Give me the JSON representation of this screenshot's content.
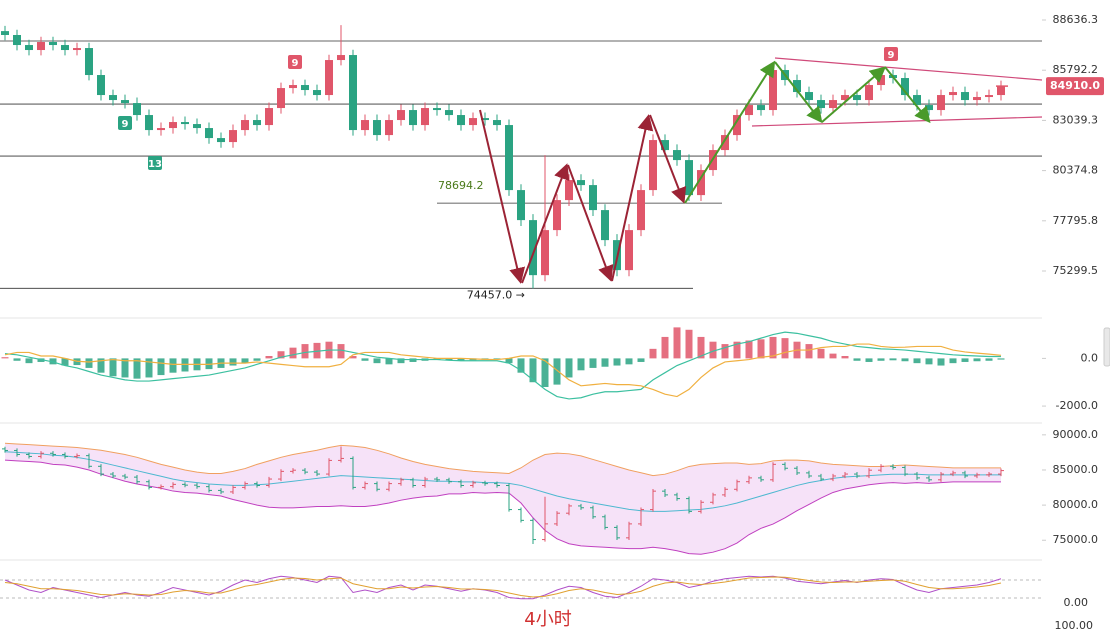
{
  "chart_data": [
    {
      "type": "candlestick",
      "log_scale": true,
      "grid": false,
      "ylim": [
        73894,
        89796
      ],
      "yticks": [
        88636.3,
        85792.2,
        83039.3,
        80374.8,
        77795.8,
        75299.5
      ],
      "up_color": "#e0566a",
      "down_color": "#2aa382",
      "open": [
        88000,
        87777,
        87207,
        86924,
        87378,
        87207,
        86924,
        87037,
        85524,
        84419,
        84145,
        83981,
        83329,
        82520,
        82628,
        82951,
        82843,
        82628,
        82092,
        81879,
        82520,
        83059,
        82789,
        83709,
        84803,
        84970,
        84694,
        84419,
        86361,
        86642,
        82520,
        83059,
        82252,
        83059,
        83600,
        82789,
        83709,
        83600,
        83329,
        82789,
        83166,
        83059,
        82789,
        79364,
        77831,
        75097,
        77327,
        78850,
        79882,
        79622,
        78339,
        76826,
        75342,
        77327,
        79364,
        81986,
        81455,
        80926,
        79106,
        80403,
        81455,
        82252,
        83329,
        83872,
        83600,
        85802,
        85246,
        84584,
        84145,
        83709,
        84145,
        84419,
        84145,
        84970,
        85524,
        85357,
        84419,
        83872,
        83600,
        84419,
        84584,
        84145,
        84310,
        84419
      ],
      "high": [
        88300,
        88077,
        87507,
        87678,
        87678,
        87507,
        87337,
        87337,
        85824,
        84719,
        84445,
        84281,
        83629,
        82928,
        83251,
        83251,
        83143,
        82928,
        82392,
        82820,
        83359,
        83359,
        84009,
        85103,
        85270,
        85270,
        84994,
        86661,
        88342,
        86942,
        83359,
        83359,
        83359,
        83900,
        83900,
        84009,
        84009,
        83900,
        83629,
        83466,
        83466,
        83359,
        83089,
        79664,
        78131,
        81188,
        79150,
        80182,
        80182,
        79922,
        78639,
        77126,
        77627,
        79664,
        82286,
        82286,
        81755,
        81226,
        80703,
        81755,
        82552,
        83629,
        84172,
        84172,
        86102,
        86102,
        85546,
        84884,
        84445,
        84445,
        84719,
        84719,
        85270,
        85824,
        85824,
        85657,
        84719,
        84172,
        84719,
        84884,
        84884,
        84610,
        84719,
        85210
      ],
      "low": [
        87477,
        86907,
        86624,
        86624,
        86907,
        86624,
        86624,
        85224,
        84119,
        83845,
        83681,
        83029,
        82220,
        82220,
        82328,
        82543,
        82328,
        81792,
        81579,
        81579,
        82220,
        82489,
        82489,
        83409,
        84503,
        84394,
        84119,
        84119,
        86061,
        82220,
        82220,
        81952,
        81952,
        82759,
        82489,
        82489,
        83300,
        83029,
        82489,
        82489,
        82759,
        82489,
        79064,
        77531,
        74457,
        74797,
        77027,
        78550,
        79322,
        78039,
        76526,
        75042,
        75042,
        77027,
        79064,
        81155,
        80626,
        78806,
        78806,
        80103,
        81155,
        81952,
        83029,
        83300,
        83300,
        84946,
        84284,
        83845,
        83409,
        83409,
        83845,
        83845,
        83845,
        84670,
        85057,
        84119,
        83572,
        83300,
        83300,
        84119,
        83845,
        83845,
        84010,
        84119
      ],
      "close": [
        87777,
        87207,
        86924,
        87378,
        87207,
        86924,
        87037,
        85524,
        84419,
        84145,
        83981,
        83329,
        82520,
        82628,
        82951,
        82843,
        82628,
        82092,
        81879,
        82520,
        83059,
        82789,
        83709,
        84803,
        84970,
        84694,
        84419,
        86361,
        86642,
        82520,
        83059,
        82252,
        83059,
        83600,
        82789,
        83709,
        83600,
        83329,
        82789,
        83166,
        83059,
        82789,
        79364,
        77831,
        75097,
        77327,
        78850,
        79882,
        79622,
        78339,
        76826,
        75342,
        77327,
        79364,
        81986,
        81455,
        80926,
        79106,
        80403,
        81455,
        82252,
        83329,
        83872,
        83600,
        85802,
        85246,
        84584,
        84145,
        83709,
        84145,
        84419,
        84145,
        84970,
        85524,
        85357,
        84419,
        83872,
        83600,
        84419,
        84584,
        84145,
        84310,
        84419,
        84910
      ],
      "levels": [
        87434,
        83926,
        81137
      ],
      "labeled_levels": [
        {
          "value": 78694.2,
          "label": "78694.2"
        },
        {
          "value": 74457,
          "label": "74457.0 →"
        }
      ],
      "last_price": {
        "value": 84910,
        "label": "84910.0"
      },
      "markers": [
        "9",
        "9",
        "13",
        "9"
      ],
      "interval_label": "4小时"
    },
    {
      "type": "macd",
      "ylim": [
        -2500,
        1400
      ],
      "yticks": [
        {
          "value": 0,
          "label": "0.0"
        },
        {
          "value": -2000,
          "label": "-2000.0"
        }
      ],
      "hist": [
        50,
        -100,
        -200,
        -150,
        -250,
        -300,
        -280,
        -400,
        -600,
        -750,
        -800,
        -850,
        -800,
        -700,
        -600,
        -550,
        -500,
        -450,
        -400,
        -300,
        -200,
        -100,
        100,
        300,
        450,
        600,
        650,
        700,
        600,
        100,
        -100,
        -200,
        -250,
        -200,
        -150,
        -100,
        -50,
        -80,
        -100,
        -80,
        -60,
        -50,
        -200,
        -600,
        -1000,
        -1200,
        -1100,
        -800,
        -500,
        -400,
        -350,
        -300,
        -250,
        -150,
        400,
        900,
        1300,
        1200,
        900,
        700,
        600,
        700,
        750,
        800,
        900,
        850,
        700,
        600,
        400,
        200,
        100,
        -100,
        -150,
        -100,
        -80,
        -120,
        -200,
        -250,
        -300,
        -200,
        -150,
        -120,
        -100,
        -50
      ],
      "dif": [
        200,
        150,
        50,
        -50,
        -150,
        -300,
        -400,
        -550,
        -700,
        -800,
        -900,
        -950,
        -950,
        -900,
        -850,
        -800,
        -750,
        -700,
        -600,
        -500,
        -400,
        -250,
        -100,
        50,
        150,
        250,
        300,
        350,
        350,
        250,
        150,
        50,
        0,
        -50,
        -50,
        -50,
        -50,
        -80,
        -100,
        -100,
        -100,
        -100,
        -200,
        -500,
        -900,
        -1300,
        -1600,
        -1700,
        -1650,
        -1500,
        -1400,
        -1400,
        -1350,
        -1300,
        -900,
        -600,
        -300,
        -100,
        100,
        300,
        450,
        600,
        700,
        850,
        1000,
        1100,
        1050,
        950,
        850,
        700,
        600,
        500,
        450,
        400,
        380,
        350,
        300,
        250,
        200,
        150,
        120,
        100,
        80,
        80
      ],
      "dea": [
        150,
        250,
        250,
        100,
        100,
        0,
        -120,
        -150,
        -100,
        -50,
        -100,
        -100,
        -150,
        -200,
        -250,
        -250,
        -250,
        -250,
        -200,
        -200,
        -200,
        -150,
        -200,
        -250,
        -300,
        -350,
        -350,
        -350,
        -250,
        150,
        250,
        250,
        250,
        150,
        100,
        50,
        0,
        0,
        0,
        -20,
        -40,
        -50,
        0,
        100,
        100,
        -100,
        -500,
        -900,
        -1150,
        -1100,
        -1050,
        -1100,
        -1100,
        -1150,
        -1300,
        -1500,
        -1600,
        -1300,
        -800,
        -400,
        -150,
        -100,
        -50,
        50,
        100,
        250,
        350,
        350,
        450,
        500,
        500,
        600,
        600,
        500,
        460,
        470,
        500,
        500,
        500,
        350,
        270,
        220,
        180,
        130
      ],
      "pos_color": "#e0566a",
      "neg_color": "#2aa382",
      "dif_color": "#3cc0a0",
      "dea_color": "#f0b040"
    },
    {
      "type": "bollinger",
      "ylim": [
        72900,
        91400
      ],
      "yticks": [
        {
          "value": 90000,
          "label": "90000.0"
        },
        {
          "value": 85000,
          "label": "85000.0"
        },
        {
          "value": 80000,
          "label": "80000.0"
        },
        {
          "value": 75000,
          "label": "75000.0"
        }
      ],
      "upper": [
        88800,
        88700,
        88600,
        88500,
        88400,
        88300,
        88200,
        88000,
        87800,
        87500,
        87200,
        86800,
        86300,
        85800,
        85400,
        85000,
        84700,
        84500,
        84500,
        84800,
        85200,
        85800,
        86300,
        86800,
        87200,
        87500,
        87800,
        88200,
        88500,
        88400,
        88200,
        87800,
        87300,
        86700,
        86200,
        85800,
        85500,
        85200,
        85000,
        84800,
        84700,
        84600,
        84500,
        85300,
        86400,
        87200,
        87400,
        87300,
        87000,
        86500,
        86000,
        85500,
        85000,
        84600,
        84200,
        84400,
        84900,
        85500,
        85800,
        85900,
        86000,
        86000,
        85800,
        85900,
        86300,
        86400,
        86400,
        86300,
        86000,
        85800,
        85700,
        85600,
        85500,
        85500,
        85600,
        85700,
        85600,
        85500,
        85400,
        85300,
        85300,
        85300,
        85300,
        85300
      ],
      "middle": [
        87600,
        87500,
        87400,
        87300,
        87100,
        87000,
        86800,
        86500,
        86100,
        85700,
        85300,
        84900,
        84500,
        84100,
        83700,
        83400,
        83200,
        83000,
        82900,
        82800,
        82800,
        82900,
        83000,
        83200,
        83400,
        83600,
        83800,
        84000,
        84200,
        84100,
        84000,
        83900,
        83800,
        83700,
        83600,
        83500,
        83400,
        83400,
        83300,
        83300,
        83200,
        83200,
        83100,
        82800,
        82300,
        81800,
        81300,
        80900,
        80600,
        80300,
        80000,
        79700,
        79400,
        79200,
        79100,
        79100,
        79200,
        79300,
        79400,
        79600,
        79900,
        80300,
        80800,
        81300,
        81800,
        82300,
        82800,
        83200,
        83500,
        83800,
        84000,
        84100,
        84200,
        84300,
        84400,
        84400,
        84400,
        84300,
        84300,
        84300,
        84300,
        84300,
        84300,
        84300
      ],
      "lower": [
        86400,
        86300,
        86200,
        86100,
        85800,
        85700,
        85400,
        85000,
        84400,
        83900,
        83400,
        83000,
        82700,
        82400,
        82000,
        81800,
        81700,
        81500,
        81300,
        80800,
        80400,
        80000,
        79700,
        79600,
        79600,
        79700,
        79800,
        79800,
        79900,
        79800,
        79800,
        80000,
        80300,
        80700,
        81000,
        81200,
        81300,
        81600,
        81600,
        81800,
        81700,
        81800,
        81700,
        80300,
        78200,
        76400,
        75200,
        74500,
        74200,
        74100,
        74000,
        73900,
        73800,
        73800,
        74000,
        73800,
        73500,
        73100,
        73000,
        73300,
        73800,
        74600,
        75800,
        76700,
        77300,
        78200,
        79200,
        80100,
        81000,
        81800,
        82300,
        82600,
        82900,
        83100,
        83200,
        83100,
        83200,
        83100,
        83200,
        83300,
        83300,
        83300,
        83300,
        83300
      ],
      "upper_color": "#f0a060",
      "middle_color": "#4db8d0",
      "lower_color": "#c040c0",
      "fill_color": "#f6e2f8"
    },
    {
      "type": "stochastic",
      "ylim": [
        0,
        100
      ],
      "yticks": [
        {
          "value": 0,
          "label": "0.00"
        }
      ],
      "lower_label": "100.00",
      "k": [
        80,
        60,
        40,
        30,
        50,
        40,
        30,
        20,
        10,
        20,
        30,
        20,
        15,
        30,
        50,
        40,
        30,
        20,
        35,
        60,
        80,
        70,
        85,
        95,
        90,
        80,
        70,
        95,
        90,
        30,
        40,
        30,
        50,
        60,
        40,
        60,
        55,
        45,
        35,
        45,
        40,
        30,
        10,
        5,
        5,
        20,
        40,
        55,
        50,
        30,
        15,
        10,
        30,
        55,
        85,
        80,
        70,
        50,
        60,
        75,
        85,
        90,
        95,
        92,
        95,
        88,
        75,
        70,
        65,
        72,
        78,
        70,
        80,
        85,
        82,
        60,
        40,
        30,
        45,
        50,
        55,
        60,
        70,
        85
      ],
      "d": [
        70,
        65,
        55,
        45,
        45,
        42,
        38,
        30,
        22,
        20,
        25,
        23,
        20,
        22,
        32,
        38,
        35,
        28,
        28,
        40,
        55,
        62,
        72,
        82,
        88,
        86,
        80,
        85,
        88,
        65,
        55,
        45,
        45,
        52,
        48,
        52,
        54,
        50,
        44,
        44,
        42,
        38,
        28,
        18,
        12,
        15,
        25,
        38,
        45,
        40,
        30,
        22,
        25,
        35,
        55,
        68,
        72,
        65,
        62,
        66,
        72,
        80,
        88,
        90,
        92,
        91,
        85,
        78,
        72,
        70,
        72,
        72,
        75,
        78,
        80,
        75,
        62,
        50,
        45,
        45,
        48,
        52,
        58,
        68
      ],
      "k_color": "#b050c8",
      "d_color": "#e0a030"
    }
  ]
}
